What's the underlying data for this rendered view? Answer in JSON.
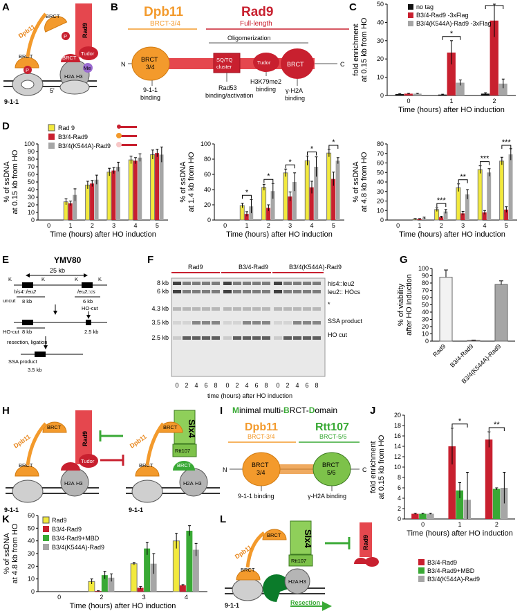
{
  "colors": {
    "yellow": "#f2e93d",
    "red": "#c8202f",
    "gray": "#a6a6a6",
    "green": "#39a935",
    "black": "#111111",
    "orange": "#f39a2c",
    "dpb11": "#e8861c",
    "rad9": "#e5474e",
    "rtt": "#7dc24a",
    "slx4": "#8fcf5a"
  },
  "panelA": {
    "letter": "A",
    "dpb11": "Dpb11",
    "brct": "BRCT",
    "rad9": "Rad9",
    "tudor": "Tudor",
    "p": "P",
    "me": "Me",
    "h2a": "H2A",
    "h3": "H3",
    "five_prime": "5'",
    "clamp": "9-1-1"
  },
  "panelB": {
    "letter": "B",
    "dpb11_title": "Dpb11",
    "dpb11_sub": "BRCT-3/4",
    "rad9_title": "Rad9",
    "rad9_sub": "Full-length",
    "oligomerization": "Oligomerization",
    "n": "N",
    "c": "C",
    "brct34": "BRCT\n3/4",
    "sqtq": "SQ/TQ\ncluster",
    "tudor": "Tudor",
    "brct": "BRCT",
    "bind_911": "9-1-1\nbinding",
    "bind_rad53": "Rad53\nbinding/activation",
    "bind_h3k79": "H3K79me2\nbinding",
    "bind_h2a": "γ-H2A\nbinding"
  },
  "panelD_legend": [
    "Rad 9",
    "B3/4-Rad9",
    "B3/4(K544A)-Rad9"
  ],
  "panelE": {
    "letter": "E",
    "title": "YMV80",
    "k": "K",
    "dist": "25 kb",
    "his4": "his4::leu2",
    "leu2": "leu2::cs",
    "uncut": "uncut",
    "kb8": "8 kb",
    "kb6": "6 kb",
    "ho_cut": "HO-cut",
    "ho_cut_label": "HO-cut",
    "kb25": "2.5 kb",
    "resection": "resection, ligation",
    "ssa": "SSA product",
    "kb35": "3.5 kb"
  },
  "panelF": {
    "letter": "F",
    "lanes_titles": [
      "Rad9",
      "B3/4-Rad9",
      "B3/4(K544A)-Rad9"
    ],
    "size_labels": [
      "8 kb",
      "6 kb",
      "4.3 kb",
      "3.5 kb",
      "2.5 kb"
    ],
    "band_labels": [
      "his4::leu2",
      "leu2:: HOcs",
      "*",
      "SSA product",
      "HO cut"
    ],
    "timepoints": [
      "0",
      "2",
      "4",
      "6",
      "8"
    ],
    "xlabel": "time (hours)   after  HO  induction"
  },
  "panelH": {
    "letter": "H",
    "slx4": "Slx4",
    "rtt107": "Rtt107"
  },
  "panelI": {
    "letter": "I",
    "title_parts": [
      "M",
      "inimal multi-",
      "B",
      "RCT-",
      "D",
      "omain"
    ],
    "dpb11": "Dpb11",
    "dpb11_sub": "BRCT-3/4",
    "rtt": "Rtt107",
    "rtt_sub": "BRCT-5/6",
    "n": "N",
    "c": "C",
    "brct34": "BRCT\n3/4",
    "brct56": "BRCT\n5/6",
    "bind_911": "9-1-1 binding",
    "bind_h2a": "γ-H2A binding"
  },
  "panelL": {
    "letter": "L",
    "resection": "Resection"
  },
  "jLegend": [
    "B3/4-Rad9",
    "B3/4-Rad9+MBD",
    "B3/4(K544A)-Rad9"
  ],
  "chart_data": [
    {
      "id": "C",
      "type": "bar",
      "title": "",
      "xlabel": "Time (hours) after HO induction",
      "ylabel": "fold enrichment\nat 0.15 kb from HO",
      "categories": [
        "0",
        "1",
        "2"
      ],
      "ylim": [
        0,
        50
      ],
      "yticks": [
        0,
        10,
        20,
        30,
        40,
        50
      ],
      "series": [
        {
          "name": "no tag",
          "color": "#111111",
          "values": [
            0.8,
            0.5,
            1.0
          ],
          "err": [
            0.2,
            0.2,
            0.5
          ]
        },
        {
          "name": "B3/4-Rad9 -3xFlag",
          "color": "#c8202f",
          "values": [
            1.0,
            23.5,
            41.0
          ],
          "err": [
            0.2,
            6.5,
            9.0
          ]
        },
        {
          "name": "B3/4(K544A)-Rad9 -3xFlag",
          "color": "#a6a6a6",
          "values": [
            1.0,
            7.0,
            6.5
          ],
          "err": [
            0.2,
            1.5,
            2.5
          ]
        }
      ],
      "significance": [
        {
          "group": "1",
          "label": "*"
        },
        {
          "group": "2",
          "label": ""
        }
      ]
    },
    {
      "id": "D1",
      "type": "bar",
      "xlabel": "Time (hours) after HO induction",
      "ylabel": "% of ssDNA\nat 0.15 kb from HO",
      "categories": [
        "0",
        "1",
        "2",
        "3",
        "4",
        "5"
      ],
      "ylim": [
        0,
        100
      ],
      "yticks": [
        0,
        10,
        20,
        30,
        40,
        50,
        60,
        70,
        80,
        90,
        100
      ],
      "series": [
        {
          "name": "Rad 9",
          "color": "#f2e93d",
          "values": [
            0,
            24,
            46,
            63,
            79,
            86
          ],
          "err": [
            0,
            4,
            5,
            5,
            5,
            6
          ]
        },
        {
          "name": "B3/4-Rad9",
          "color": "#c8202f",
          "values": [
            0,
            22,
            48,
            65,
            78,
            88
          ],
          "err": [
            0,
            3,
            4,
            4,
            4,
            5
          ]
        },
        {
          "name": "B3/4(K544A)-Rad9",
          "color": "#a6a6a6",
          "values": [
            0,
            33,
            53,
            70,
            82,
            86
          ],
          "err": [
            0,
            8,
            6,
            6,
            5,
            10
          ]
        }
      ]
    },
    {
      "id": "D2",
      "type": "bar",
      "xlabel": "Time (hours) after HO induction",
      "ylabel": "% of ssDNA\nat 1.4 kb from HO",
      "categories": [
        "0",
        "1",
        "2",
        "3",
        "4",
        "5"
      ],
      "ylim": [
        0,
        100
      ],
      "yticks": [
        0,
        20,
        40,
        60,
        80,
        100
      ],
      "series": [
        {
          "name": "Rad 9",
          "color": "#f2e93d",
          "values": [
            0,
            19,
            43,
            62,
            78,
            88
          ],
          "err": [
            0,
            3,
            4,
            5,
            6,
            5
          ]
        },
        {
          "name": "B3/4-Rad9",
          "color": "#c8202f",
          "values": [
            0,
            8,
            16,
            31,
            43,
            54
          ],
          "err": [
            0,
            3,
            4,
            6,
            8,
            9
          ]
        },
        {
          "name": "B3/4(K544A)-Rad9",
          "color": "#a6a6a6",
          "values": [
            0,
            18,
            38,
            50,
            70,
            78
          ],
          "err": [
            0,
            9,
            10,
            12,
            13,
            4
          ]
        }
      ],
      "significance": [
        {
          "group": "1",
          "label": "*"
        },
        {
          "group": "2",
          "label": "*"
        },
        {
          "group": "3",
          "label": "*"
        },
        {
          "group": "4",
          "label": "*"
        },
        {
          "group": "5",
          "label": "*"
        }
      ]
    },
    {
      "id": "D3",
      "type": "bar",
      "xlabel": "Time (hours) after HO induction",
      "ylabel": "% of ssDNA\nat 4.8 kb from HO",
      "categories": [
        "0",
        "1",
        "2",
        "3",
        "4",
        "5"
      ],
      "ylim": [
        0,
        80
      ],
      "yticks": [
        0,
        10,
        20,
        30,
        40,
        50,
        60,
        70,
        80
      ],
      "series": [
        {
          "name": "Rad 9",
          "color": "#f2e93d",
          "values": [
            0,
            1,
            11,
            34,
            53,
            62
          ],
          "err": [
            0,
            0.5,
            2,
            4,
            4,
            4
          ]
        },
        {
          "name": "B3/4-Rad9",
          "color": "#c8202f",
          "values": [
            0,
            1,
            3,
            7,
            8,
            11
          ],
          "err": [
            0,
            0.5,
            1,
            2,
            2,
            3
          ]
        },
        {
          "name": "B3/4(K544A)-Rad9",
          "color": "#a6a6a6",
          "values": [
            0,
            2,
            9,
            27,
            50,
            69
          ],
          "err": [
            0,
            1,
            2,
            5,
            4,
            6
          ]
        }
      ],
      "significance": [
        {
          "group": "2",
          "label": "***"
        },
        {
          "group": "3",
          "label": "**"
        },
        {
          "group": "4",
          "label": "***"
        },
        {
          "group": "5",
          "label": "***"
        }
      ]
    },
    {
      "id": "G",
      "type": "bar",
      "xlabel": "",
      "ylabel": "% of viability\nafter HO induction",
      "categories": [
        "Rad9",
        "B3/4-Rad9",
        "B3/4(K544A)-Rad9"
      ],
      "ylim": [
        0,
        100
      ],
      "yticks": [
        0,
        10,
        20,
        30,
        40,
        50,
        60,
        70,
        80,
        90,
        100
      ],
      "series": [
        {
          "name": "viability",
          "colors": [
            "#f2f2f2",
            "#c8202f",
            "#a6a6a6"
          ],
          "values": [
            88,
            1,
            78
          ],
          "err": [
            10,
            0.5,
            5
          ]
        }
      ]
    },
    {
      "id": "J",
      "type": "bar",
      "xlabel": "Time (hours) after HO induction",
      "ylabel": "fold enrichment\nat 0.15 kb from HO",
      "categories": [
        "0",
        "1",
        "2"
      ],
      "ylim": [
        0,
        20
      ],
      "yticks": [
        0,
        2,
        4,
        6,
        8,
        10,
        12,
        14,
        16,
        18,
        20
      ],
      "series": [
        {
          "name": "B3/4-Rad9",
          "color": "#c8202f",
          "values": [
            1.0,
            14.0,
            15.3
          ],
          "err": [
            0.1,
            3.5,
            1.5
          ]
        },
        {
          "name": "B3/4-Rad9+MBD",
          "color": "#39a935",
          "values": [
            1.0,
            5.5,
            5.8
          ],
          "err": [
            0.1,
            1.5,
            0.2
          ]
        },
        {
          "name": "B3/4(K544A)-Rad9",
          "color": "#a6a6a6",
          "values": [
            1.0,
            3.7,
            6.0
          ],
          "err": [
            0.1,
            5.3,
            3.0
          ]
        }
      ],
      "significance": [
        {
          "group": "1",
          "label": "*"
        },
        {
          "group": "2",
          "label": "**"
        }
      ]
    },
    {
      "id": "K",
      "type": "bar",
      "xlabel": "Time (hours) after HO induction",
      "ylabel": "% of ssDNA\nat 4.8 kb from HO",
      "categories": [
        "0",
        "2",
        "3",
        "4"
      ],
      "ylim": [
        0,
        60
      ],
      "yticks": [
        0,
        10,
        20,
        30,
        40,
        50,
        60
      ],
      "series": [
        {
          "name": "Rad9",
          "color": "#f2e93d",
          "values": [
            0,
            8,
            22,
            40
          ],
          "err": [
            0,
            2,
            1,
            6
          ]
        },
        {
          "name": "B3/4-Rad9",
          "color": "#c8202f",
          "values": [
            0,
            0.5,
            3,
            5
          ],
          "err": [
            0,
            0.2,
            1,
            0.5
          ]
        },
        {
          "name": "B3/4-Rad9+MBD",
          "color": "#39a935",
          "values": [
            0,
            13,
            34,
            48
          ],
          "err": [
            0,
            3,
            5,
            4
          ]
        },
        {
          "name": "B3/4(K544A)-Rad9",
          "color": "#a6a6a6",
          "values": [
            0,
            11,
            22,
            33
          ],
          "err": [
            0,
            3,
            8,
            5
          ]
        }
      ]
    }
  ]
}
